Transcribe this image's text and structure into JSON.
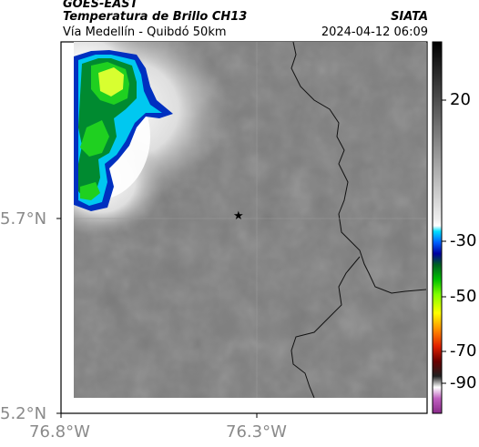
{
  "header": {
    "satellite": "GOES-EAST",
    "product": "Temperatura de Brillo CH13",
    "org": "SIATA",
    "route": "Vía Medellín - Quibdó 50km",
    "timestamp": "2024-04-12 06:09"
  },
  "axes": {
    "lat_ticks": [
      "5.7°N",
      "5.2°N"
    ],
    "lon_ticks": [
      "76.8°W",
      "76.3°W"
    ]
  },
  "colorbar": {
    "ticks": [
      "20",
      "-30",
      "-50",
      "-70",
      "-90"
    ]
  },
  "marker": {
    "symbol": "★",
    "name": "route-center-marker"
  },
  "colors": {
    "frame": "#000000",
    "background_gray": "#7d7d7d",
    "cloud_white": "#ffffff"
  }
}
